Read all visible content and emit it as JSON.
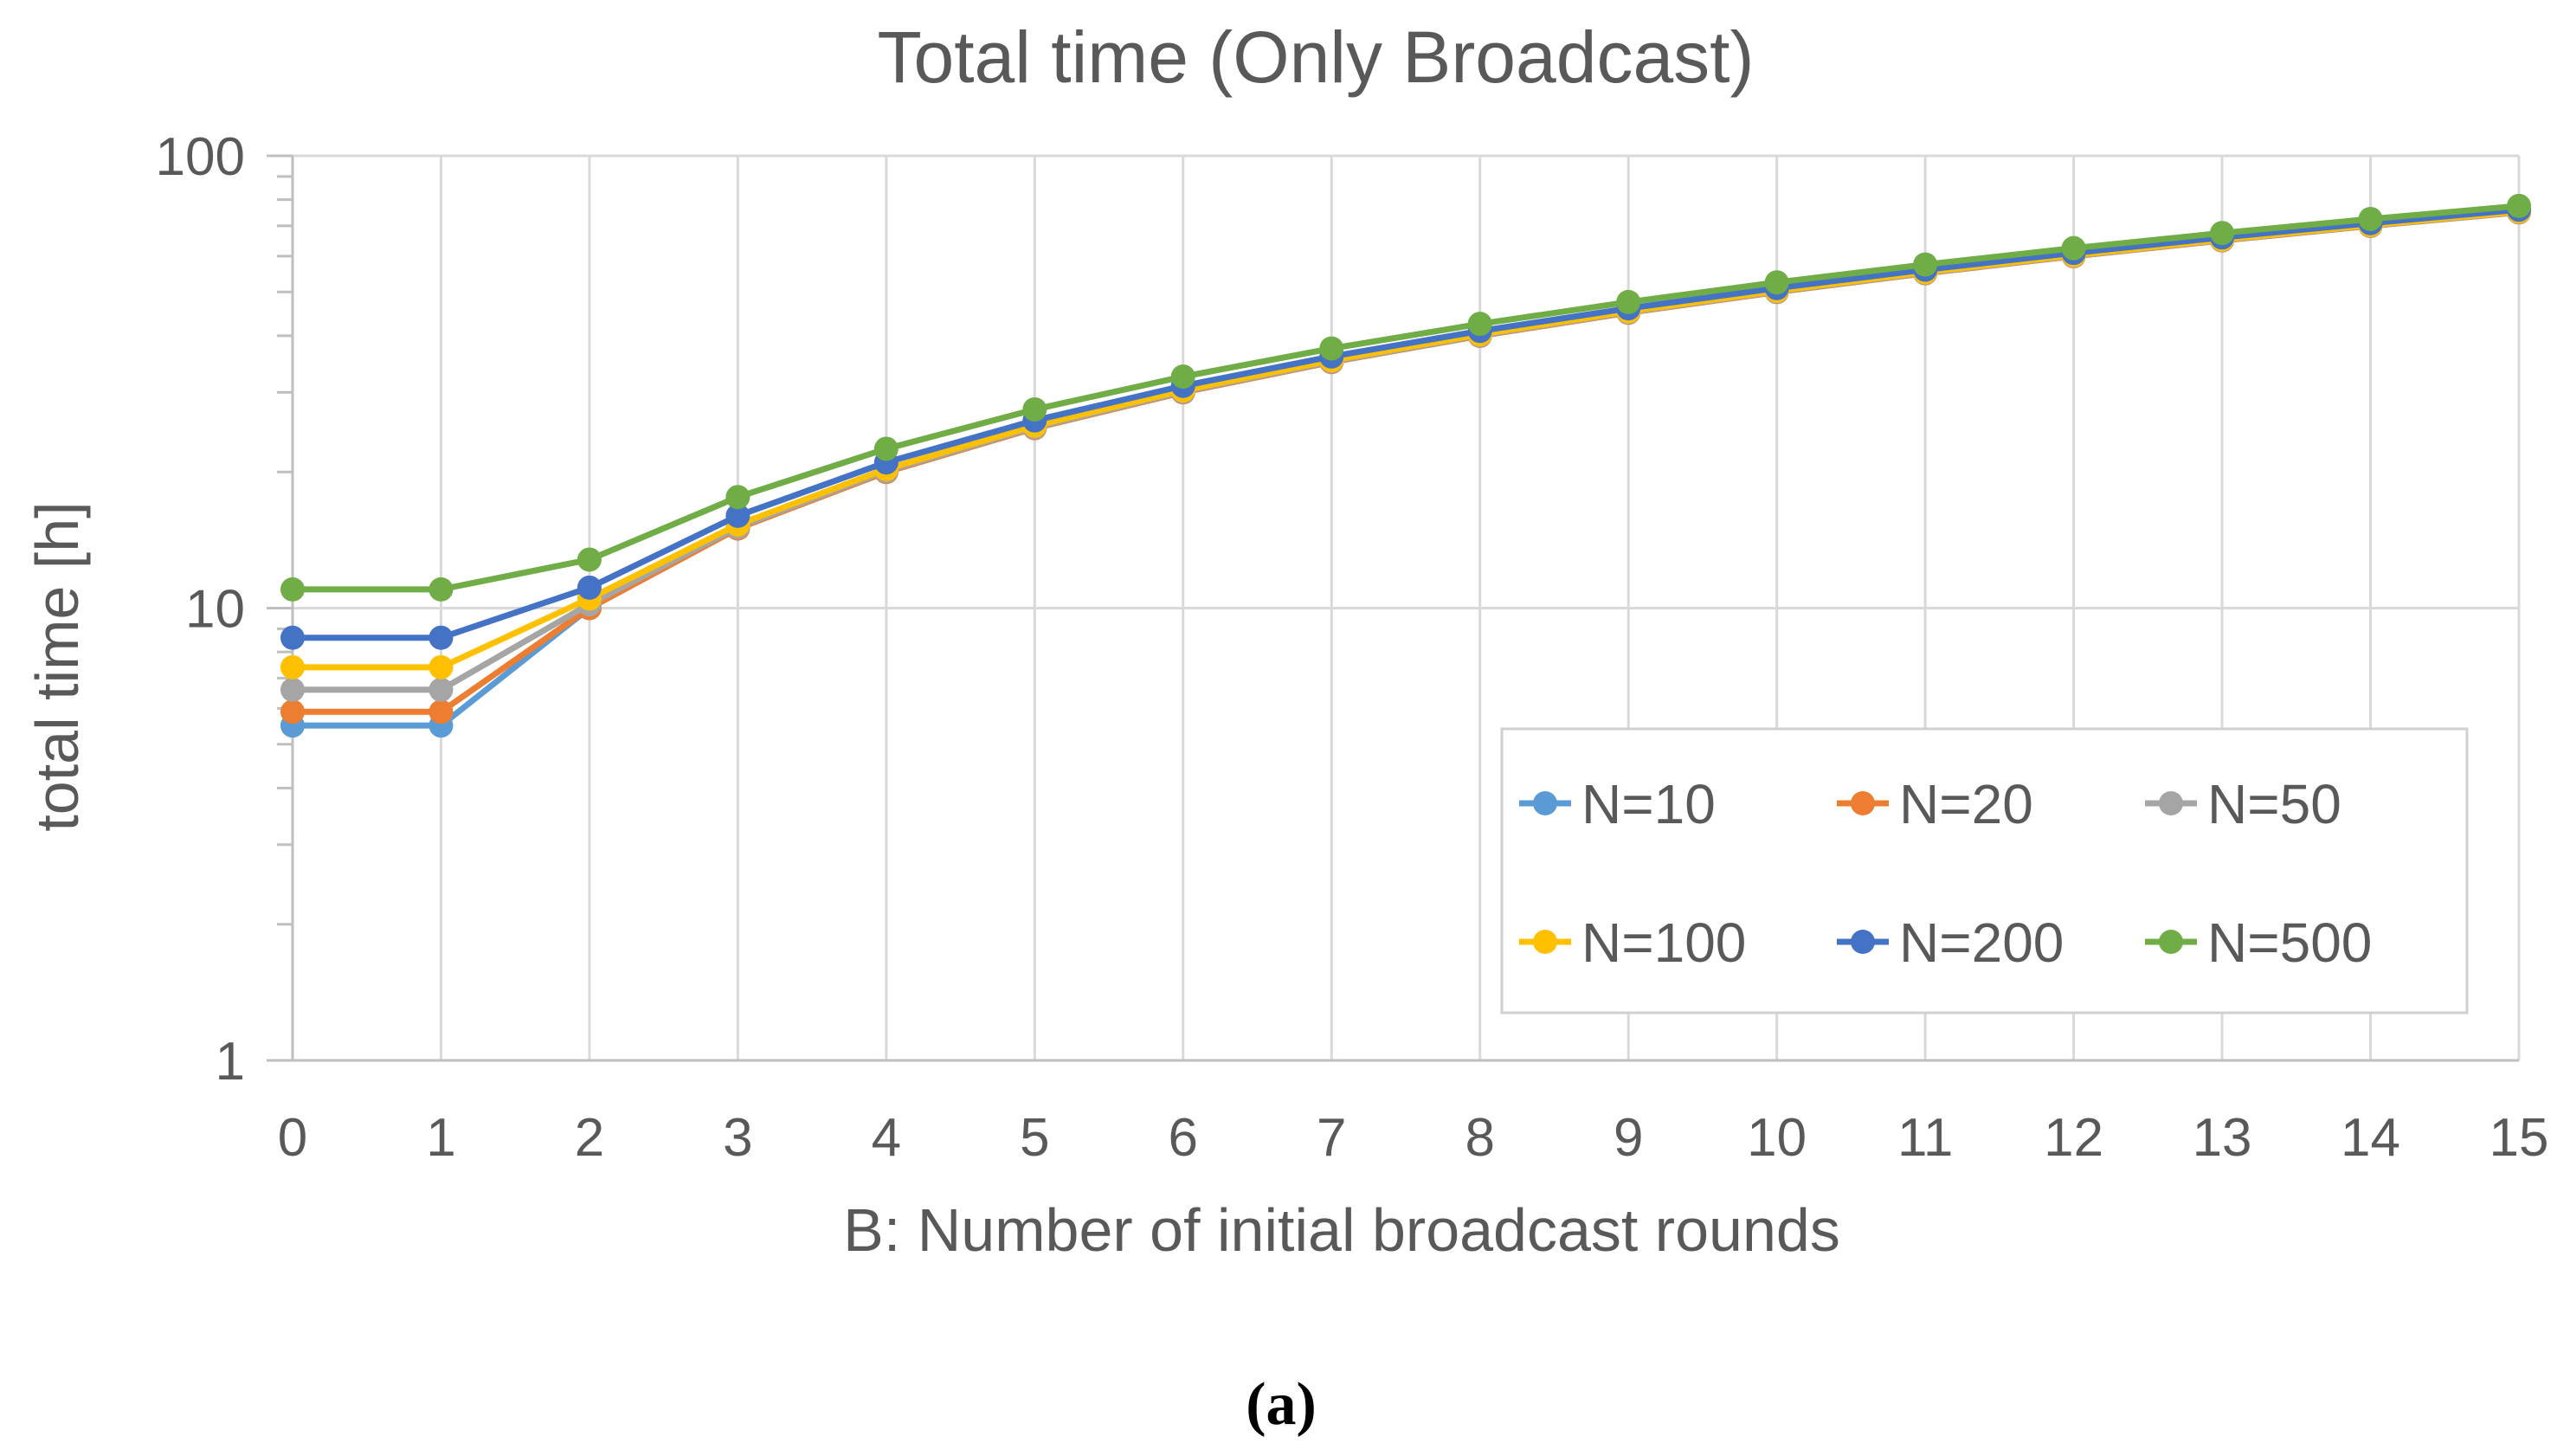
{
  "chart_data": {
    "type": "line",
    "title": "Total time (Only Broadcast)",
    "xlabel": "B: Number of initial broadcast rounds",
    "ylabel": "total time [h]",
    "yscale": "log",
    "ylim": [
      1,
      100
    ],
    "xlim": [
      0,
      15
    ],
    "x": [
      0,
      1,
      2,
      3,
      4,
      5,
      6,
      7,
      8,
      9,
      10,
      11,
      12,
      13,
      14,
      15
    ],
    "xticks": [
      "0",
      "1",
      "2",
      "3",
      "4",
      "5",
      "6",
      "7",
      "8",
      "9",
      "10",
      "11",
      "12",
      "13",
      "14",
      "15"
    ],
    "yticks": [
      "1",
      "10",
      "100"
    ],
    "grid": true,
    "legend_position": "lower-right",
    "series": [
      {
        "name": "N=10",
        "color": "#5B9BD5",
        "values": [
          5.5,
          5.5,
          10.0,
          15.0,
          20.0,
          25.0,
          30.0,
          35.0,
          40.0,
          45.0,
          50.0,
          55.0,
          60.0,
          65.0,
          70.0,
          75.0
        ]
      },
      {
        "name": "N=20",
        "color": "#ED7D31",
        "values": [
          5.9,
          5.9,
          10.0,
          15.0,
          20.0,
          25.0,
          30.0,
          35.0,
          40.0,
          45.0,
          50.0,
          55.0,
          60.0,
          65.0,
          70.0,
          75.0
        ]
      },
      {
        "name": "N=50",
        "color": "#A5A5A5",
        "values": [
          6.6,
          6.6,
          10.2,
          15.1,
          20.1,
          25.1,
          30.1,
          35.1,
          40.1,
          45.1,
          50.1,
          55.1,
          60.1,
          65.1,
          70.1,
          75.1
        ]
      },
      {
        "name": "N=100",
        "color": "#FFC000",
        "values": [
          7.4,
          7.4,
          10.5,
          15.3,
          20.3,
          25.3,
          30.3,
          35.3,
          40.3,
          45.3,
          50.3,
          55.3,
          60.3,
          65.3,
          70.3,
          75.3
        ]
      },
      {
        "name": "N=200",
        "color": "#4472C4",
        "values": [
          8.6,
          8.6,
          11.1,
          16.0,
          21.0,
          26.0,
          31.0,
          36.0,
          41.0,
          46.0,
          51.0,
          56.0,
          61.0,
          66.0,
          71.0,
          76.0
        ]
      },
      {
        "name": "N=500",
        "color": "#70AD47",
        "values": [
          11.0,
          11.0,
          12.8,
          17.6,
          22.5,
          27.5,
          32.5,
          37.5,
          42.5,
          47.5,
          52.5,
          57.5,
          62.5,
          67.5,
          72.5,
          77.5
        ]
      }
    ]
  },
  "caption": "(a)"
}
